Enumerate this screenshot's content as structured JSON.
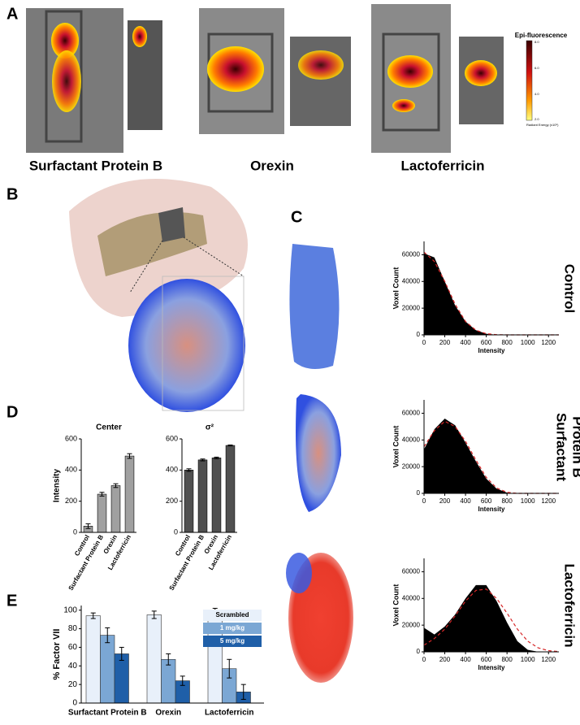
{
  "panels": [
    "A",
    "B",
    "C",
    "D",
    "E"
  ],
  "panel_a": {
    "labels": [
      "Surfactant Protein B",
      "Orexin",
      "Lactoferricin"
    ],
    "colorbar_title": "Epi-fluorescence",
    "colorbar_ticks": [
      "8.0",
      "6.0",
      "4.0",
      "2.0"
    ],
    "colorbar_unit": "Radiant Energy (x10⁶)"
  },
  "panel_c": {
    "rows": [
      [
        "Control"
      ],
      [
        "Surfactant",
        "Protein B"
      ],
      [
        "Lactoferricin"
      ]
    ]
  },
  "chart_data": [
    {
      "type": "area",
      "xlabel": "Intensity",
      "ylabel": "Voxel Count",
      "x": [
        0,
        100,
        200,
        300,
        400,
        500,
        600,
        700,
        800,
        900,
        1000,
        1100,
        1200,
        1300
      ],
      "series": [
        {
          "color": "#000000",
          "values": [
            61000,
            58000,
            40000,
            22000,
            10000,
            3500,
            800,
            100,
            0,
            0,
            0,
            0,
            0,
            0
          ]
        },
        {
          "color": "#d62728",
          "dashed": true,
          "values": [
            62000,
            55000,
            40000,
            23000,
            10000,
            3500,
            900,
            150,
            0,
            0,
            0,
            0,
            0,
            0
          ]
        }
      ],
      "xlim": [
        0,
        1300
      ],
      "xticks": [
        0,
        200,
        400,
        600,
        800,
        1000,
        1200
      ],
      "ylim": [
        0,
        70000
      ],
      "yticks": [
        0,
        20000,
        40000,
        60000
      ]
    },
    {
      "type": "area",
      "xlabel": "Intensity",
      "ylabel": "Voxel Count",
      "x": [
        0,
        100,
        200,
        300,
        400,
        500,
        600,
        700,
        800,
        900,
        1000,
        1100,
        1200,
        1300
      ],
      "series": [
        {
          "color": "#000000",
          "values": [
            33000,
            48000,
            56000,
            51000,
            38000,
            24000,
            11000,
            3500,
            500,
            0,
            0,
            0,
            0,
            0
          ]
        },
        {
          "color": "#d62728",
          "dashed": true,
          "values": [
            35000,
            47000,
            54000,
            50000,
            39000,
            25000,
            12000,
            4000,
            800,
            0,
            0,
            0,
            0,
            0
          ]
        }
      ],
      "xlim": [
        0,
        1300
      ],
      "xticks": [
        0,
        200,
        400,
        600,
        800,
        1000,
        1200
      ],
      "ylim": [
        0,
        70000
      ],
      "yticks": [
        0,
        20000,
        40000,
        60000
      ]
    },
    {
      "type": "area",
      "xlabel": "Intensity",
      "ylabel": "Voxel Count",
      "x": [
        0,
        100,
        200,
        300,
        400,
        500,
        600,
        700,
        800,
        900,
        1000,
        1100,
        1200,
        1300
      ],
      "series": [
        {
          "color": "#000000",
          "values": [
            18000,
            13000,
            19000,
            28000,
            40000,
            50000,
            50000,
            38000,
            22000,
            8000,
            1500,
            100,
            0,
            0
          ]
        },
        {
          "color": "#d62728",
          "dashed": true,
          "values": [
            5000,
            10000,
            17000,
            27000,
            38000,
            46000,
            47000,
            40000,
            29000,
            17000,
            8000,
            3000,
            900,
            200
          ]
        }
      ],
      "xlim": [
        0,
        1300
      ],
      "xticks": [
        0,
        200,
        400,
        600,
        800,
        1000,
        1200
      ],
      "ylim": [
        0,
        70000
      ],
      "yticks": [
        0,
        20000,
        40000,
        60000
      ]
    },
    {
      "type": "bar",
      "title": "Center",
      "ylabel": "Intensity",
      "color": "#a0a0a0",
      "categories": [
        "Control",
        "Surfactant Protein B",
        "Orexin",
        "Lactoferricin"
      ],
      "values": [
        40,
        245,
        300,
        490
      ],
      "errors": [
        15,
        12,
        12,
        15
      ],
      "ylim": [
        0,
        600
      ],
      "yticks": [
        0,
        200,
        400,
        600
      ]
    },
    {
      "type": "bar",
      "title": "σ²",
      "color": "#505050",
      "categories": [
        "Control",
        "Surfactant Protein B",
        "Orexin",
        "Lactoferricin"
      ],
      "values": [
        400,
        465,
        478,
        558
      ],
      "errors": [
        8,
        6,
        5,
        3
      ],
      "ylim": [
        0,
        600
      ],
      "yticks": [
        0,
        200,
        400,
        600
      ]
    },
    {
      "type": "grouped_bar",
      "ylabel": "% Factor VII",
      "legend": "top-right",
      "categories": [
        "Surfactant Protein B",
        "Orexin",
        "Lactoferricin"
      ],
      "series": [
        {
          "name": "Scrambled",
          "color": "#e8f0fa",
          "values": [
            94,
            95,
            98
          ],
          "errors": [
            3,
            4,
            4
          ]
        },
        {
          "name": "1 mg/kg",
          "color": "#7ba7d4",
          "values": [
            73,
            47,
            37
          ],
          "errors": [
            8,
            6,
            10
          ]
        },
        {
          "name": "5 mg/kg",
          "color": "#1f5fa8",
          "values": [
            53,
            24,
            12
          ],
          "errors": [
            7,
            5,
            8
          ]
        }
      ],
      "ylim": [
        0,
        105
      ],
      "yticks": [
        0,
        20,
        40,
        60,
        80,
        100
      ]
    }
  ]
}
